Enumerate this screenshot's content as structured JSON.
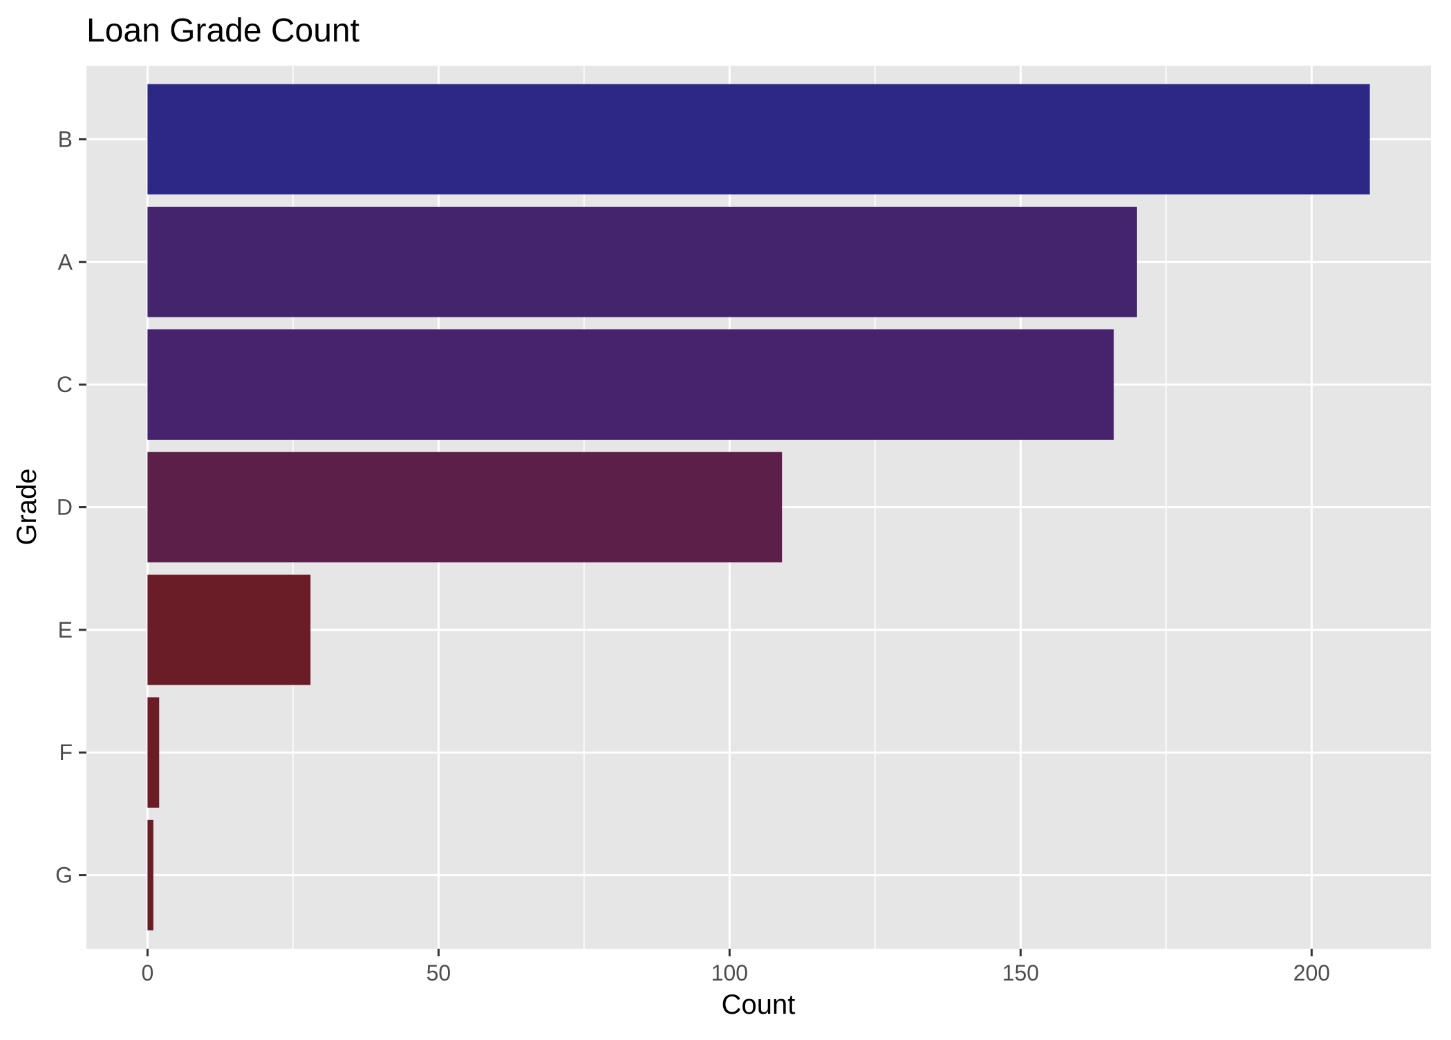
{
  "chart_data": {
    "type": "bar",
    "orientation": "horizontal",
    "title": "Loan Grade Count",
    "xlabel": "Count",
    "ylabel": "Grade",
    "categories": [
      "B",
      "A",
      "C",
      "D",
      "E",
      "F",
      "G"
    ],
    "values": [
      210,
      170,
      166,
      109,
      28,
      2,
      1
    ],
    "bar_colors": [
      "#2d2886",
      "#43246d",
      "#48236d",
      "#5b1f4a",
      "#6a1c27",
      "#6a1c27",
      "#6a1c27"
    ],
    "xlim": [
      -10.5,
      220.5
    ],
    "x_ticks": [
      0,
      50,
      100,
      150,
      200
    ],
    "x_tick_labels": [
      "0",
      "50",
      "100",
      "150",
      "200"
    ],
    "grid": true,
    "panel_background": "#e6e6e6",
    "gridline_color": "#ffffff",
    "legend": "none"
  }
}
